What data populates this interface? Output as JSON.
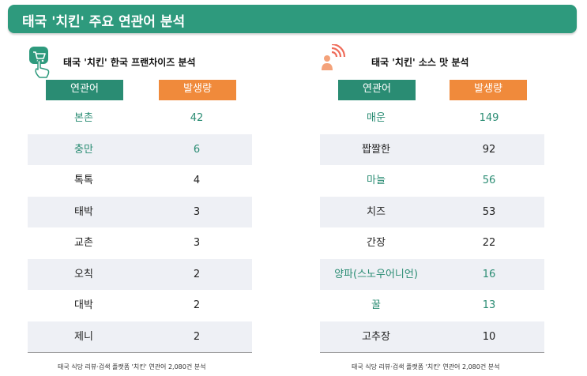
{
  "banner": {
    "title": "태국 '치킨' 주요 연관어 분석"
  },
  "left": {
    "title": "태국 '치킨' 한국 프랜차이즈 분석",
    "icon": "cart-hand-icon",
    "headers": {
      "keyword": "연관어",
      "count": "발생량"
    },
    "footnote": "태국 식당 리뷰·검색 플랫폼 '치킨' 연관어 2,080건 분석"
  },
  "right": {
    "title": "태국 '치킨' 소스 맛 분석",
    "icon": "person-signal-icon",
    "headers": {
      "keyword": "연관어",
      "count": "발생량"
    },
    "footnote": "태국 식당 리뷰·검색 플랫폼 '치킨' 연관어 2,080건 분석"
  },
  "colors": {
    "banner": "#2e9a7d",
    "header_green": "#2a8c73",
    "header_orange": "#f08a3b",
    "highlight_text": "#2a8c73",
    "row_shade": "#eef0f5"
  },
  "chart_data": [
    {
      "type": "table",
      "title": "태국 '치킨' 한국 프랜차이즈 분석",
      "columns": [
        "연관어",
        "발생량"
      ],
      "rows": [
        {
          "keyword": "본촌",
          "count": "42",
          "highlight": true
        },
        {
          "keyword": "충만",
          "count": "6",
          "highlight": true
        },
        {
          "keyword": "톡톡",
          "count": "4",
          "highlight": false
        },
        {
          "keyword": "태박",
          "count": "3",
          "highlight": false
        },
        {
          "keyword": "교촌",
          "count": "3",
          "highlight": false
        },
        {
          "keyword": "오칙",
          "count": "2",
          "highlight": false
        },
        {
          "keyword": "대박",
          "count": "2",
          "highlight": false
        },
        {
          "keyword": "제니",
          "count": "2",
          "highlight": false
        }
      ]
    },
    {
      "type": "table",
      "title": "태국 '치킨' 소스 맛 분석",
      "columns": [
        "연관어",
        "발생량"
      ],
      "rows": [
        {
          "keyword": "매운",
          "count": "149",
          "highlight": true
        },
        {
          "keyword": "짭짤한",
          "count": "92",
          "highlight": false
        },
        {
          "keyword": "마늘",
          "count": "56",
          "highlight": true
        },
        {
          "keyword": "치즈",
          "count": "53",
          "highlight": false
        },
        {
          "keyword": "간장",
          "count": "22",
          "highlight": false
        },
        {
          "keyword": "양파(스노우어니언)",
          "count": "16",
          "highlight": true
        },
        {
          "keyword": "꿀",
          "count": "13",
          "highlight": true
        },
        {
          "keyword": "고추장",
          "count": "10",
          "highlight": false
        }
      ]
    }
  ]
}
